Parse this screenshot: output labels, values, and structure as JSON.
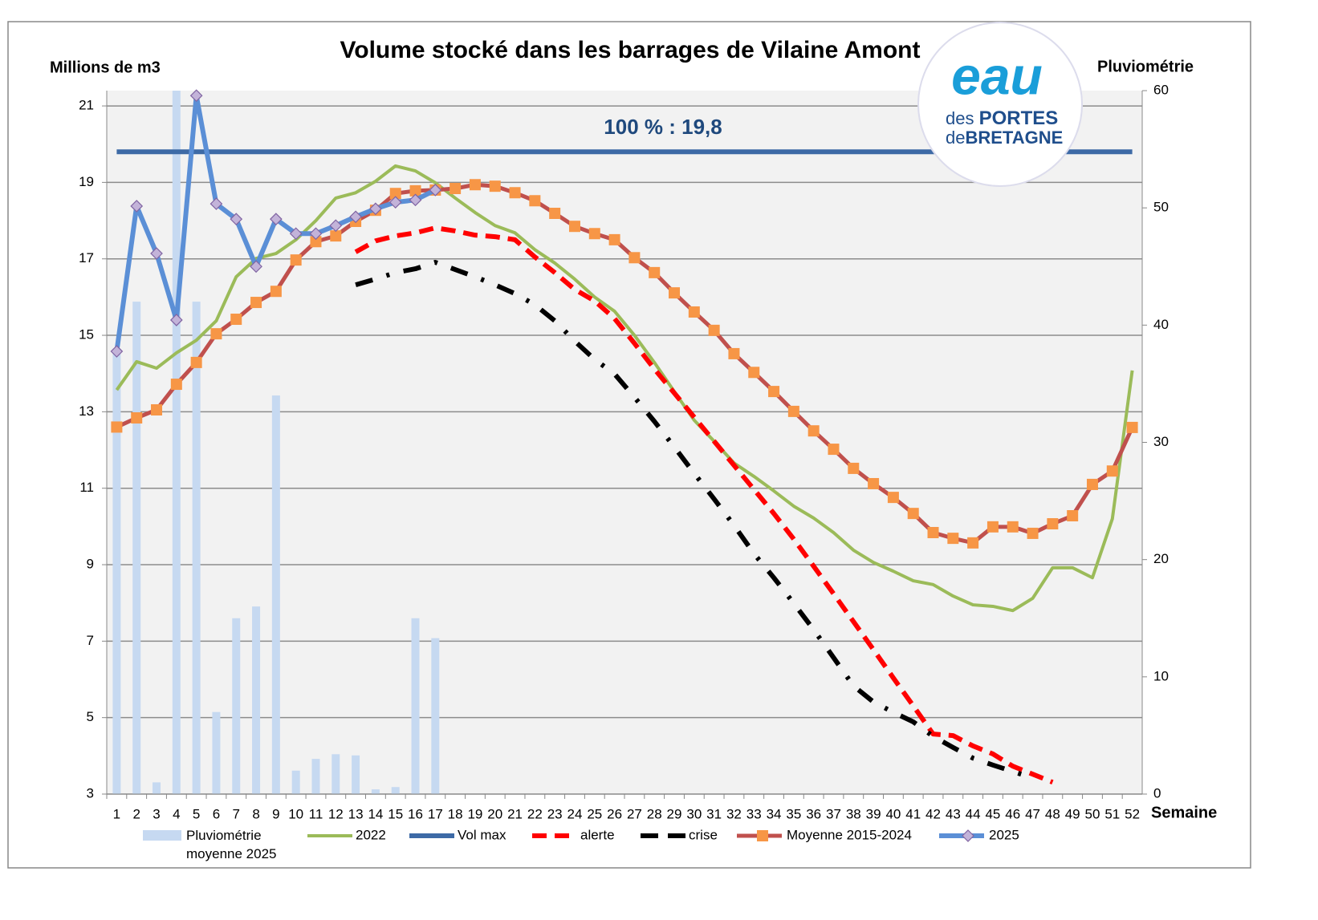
{
  "chart_data": {
    "type": "line",
    "title": "Volume stocké dans les barrages de Vilaine Amont",
    "y_label": "Millions de m3",
    "y2_label": "Pluviométrie",
    "x_label": "Semaine",
    "annotation": "100 % : 19,8",
    "logo": {
      "mark": "eau",
      "line1a": "des",
      "line1b": "PORTES",
      "line2a": "de",
      "line2b": "BRETAGNE"
    },
    "categories": [
      "1",
      "2",
      "3",
      "4",
      "5",
      "6",
      "7",
      "8",
      "9",
      "10",
      "11",
      "12",
      "13",
      "14",
      "15",
      "16",
      "17",
      "18",
      "19",
      "20",
      "21",
      "22",
      "23",
      "24",
      "25",
      "26",
      "27",
      "28",
      "29",
      "30",
      "31",
      "32",
      "33",
      "34",
      "35",
      "36",
      "37",
      "38",
      "39",
      "40",
      "41",
      "42",
      "43",
      "44",
      "45",
      "46",
      "47",
      "48",
      "49",
      "50",
      "51",
      "52"
    ],
    "ylim": [
      3,
      21.4
    ],
    "yticks": [
      3,
      5,
      7,
      9,
      11,
      13,
      15,
      17,
      19,
      21
    ],
    "y2lim": [
      0,
      60
    ],
    "y2ticks": [
      0,
      10,
      20,
      30,
      40,
      50,
      60
    ],
    "grid": true,
    "series": [
      {
        "name": "Pluviométrie moyenne 2025",
        "kind": "bar",
        "axis": "y2",
        "color": "#c6d9f1",
        "values": [
          38,
          42,
          1,
          65,
          42,
          7,
          15,
          16,
          34,
          2,
          3,
          3.4,
          3.3,
          0.4,
          0.6,
          15,
          13.3,
          null,
          null,
          null,
          null,
          null,
          null,
          null,
          null,
          null,
          null,
          null,
          null,
          null,
          null,
          null,
          null,
          null,
          null,
          null,
          null,
          null,
          null,
          null,
          null,
          null,
          null,
          null,
          null,
          null,
          null,
          null,
          null,
          null,
          null,
          null
        ]
      },
      {
        "name": "2022",
        "kind": "line",
        "color": "#9bbb59",
        "width": 4,
        "dash": "solid",
        "values": [
          13.57,
          14.31,
          14.14,
          14.54,
          14.87,
          15.38,
          16.53,
          17.01,
          17.14,
          17.5,
          18.0,
          18.59,
          18.73,
          19.03,
          19.43,
          19.3,
          18.99,
          18.59,
          18.21,
          17.87,
          17.68,
          17.24,
          16.89,
          16.47,
          16.0,
          15.63,
          15.0,
          14.29,
          13.53,
          12.78,
          12.23,
          11.66,
          11.31,
          10.93,
          10.53,
          10.22,
          9.84,
          9.38,
          9.06,
          8.83,
          8.58,
          8.48,
          8.18,
          7.95,
          7.91,
          7.8,
          8.12,
          8.92,
          8.92,
          8.66,
          10.2,
          14.08
        ]
      },
      {
        "name": "Vol max",
        "kind": "line",
        "color": "#3d6aa6",
        "width": 6,
        "dash": "solid",
        "values": [
          19.8,
          19.8,
          19.8,
          19.8,
          19.8,
          19.8,
          19.8,
          19.8,
          19.8,
          19.8,
          19.8,
          19.8,
          19.8,
          19.8,
          19.8,
          19.8,
          19.8,
          19.8,
          19.8,
          19.8,
          19.8,
          19.8,
          19.8,
          19.8,
          19.8,
          19.8,
          19.8,
          19.8,
          19.8,
          19.8,
          19.8,
          19.8,
          19.8,
          19.8,
          19.8,
          19.8,
          19.8,
          19.8,
          19.8,
          19.8,
          19.8,
          19.8,
          19.8,
          19.8,
          19.8,
          19.8,
          19.8,
          19.8,
          19.8,
          19.8,
          19.8,
          19.8
        ]
      },
      {
        "name": "alerte",
        "kind": "line",
        "color": "#ff0000",
        "width": 6,
        "dash": "dash",
        "values": [
          null,
          null,
          null,
          null,
          null,
          null,
          null,
          null,
          null,
          null,
          null,
          null,
          17.18,
          17.47,
          17.6,
          17.68,
          17.81,
          17.73,
          17.62,
          17.58,
          17.5,
          17.05,
          16.64,
          16.2,
          15.9,
          15.44,
          14.79,
          14.12,
          13.49,
          12.86,
          12.23,
          11.6,
          10.97,
          10.34,
          9.67,
          8.96,
          8.24,
          7.51,
          6.78,
          6.04,
          5.31,
          4.57,
          4.53,
          4.26,
          4.05,
          3.73,
          3.52,
          3.31,
          null,
          null,
          null,
          null
        ]
      },
      {
        "name": "crise",
        "kind": "line",
        "color": "#000000",
        "width": 6,
        "dash": "dashdot",
        "values": [
          null,
          null,
          null,
          null,
          null,
          null,
          null,
          null,
          null,
          null,
          null,
          null,
          16.32,
          16.47,
          16.64,
          16.74,
          16.91,
          16.72,
          16.53,
          16.32,
          16.09,
          15.8,
          15.38,
          14.85,
          14.37,
          13.99,
          13.38,
          12.75,
          12.08,
          11.39,
          10.72,
          10.03,
          9.29,
          8.66,
          7.99,
          7.3,
          6.57,
          5.83,
          5.41,
          5.14,
          4.89,
          4.51,
          4.22,
          3.94,
          3.76,
          3.59,
          3.42,
          null,
          null,
          null,
          null,
          null
        ]
      },
      {
        "name": "Moyenne 2015-2024",
        "kind": "line",
        "color": "#c0504d",
        "width": 5,
        "dash": "solid",
        "marker": "square",
        "marker_color": "#f79646",
        "values": [
          12.6,
          12.84,
          13.05,
          13.72,
          14.29,
          15.04,
          15.42,
          15.86,
          16.15,
          16.97,
          17.45,
          17.6,
          17.98,
          18.27,
          18.71,
          18.78,
          18.8,
          18.84,
          18.94,
          18.9,
          18.73,
          18.52,
          18.19,
          17.85,
          17.66,
          17.5,
          17.03,
          16.64,
          16.11,
          15.61,
          15.13,
          14.52,
          14.03,
          13.53,
          13.01,
          12.5,
          12.02,
          11.52,
          11.12,
          10.76,
          10.34,
          9.84,
          9.69,
          9.57,
          9.99,
          9.99,
          9.82,
          10.07,
          10.28,
          11.1,
          11.45,
          12.59
        ]
      },
      {
        "name": "2025",
        "kind": "line",
        "color": "#5b8fd6",
        "width": 6,
        "dash": "solid",
        "marker": "diamond",
        "marker_color": "#c3b3d9",
        "values": [
          14.58,
          18.38,
          17.14,
          15.4,
          21.27,
          18.44,
          18.04,
          16.8,
          18.04,
          17.66,
          17.66,
          17.87,
          18.1,
          18.31,
          18.48,
          18.54,
          18.8,
          null,
          null,
          null,
          null,
          null,
          null,
          null,
          null,
          null,
          null,
          null,
          null,
          null,
          null,
          null,
          null,
          null,
          null,
          null,
          null,
          null,
          null,
          null,
          null,
          null,
          null,
          null,
          null,
          null,
          null,
          null,
          null,
          null,
          null,
          null
        ]
      }
    ]
  }
}
